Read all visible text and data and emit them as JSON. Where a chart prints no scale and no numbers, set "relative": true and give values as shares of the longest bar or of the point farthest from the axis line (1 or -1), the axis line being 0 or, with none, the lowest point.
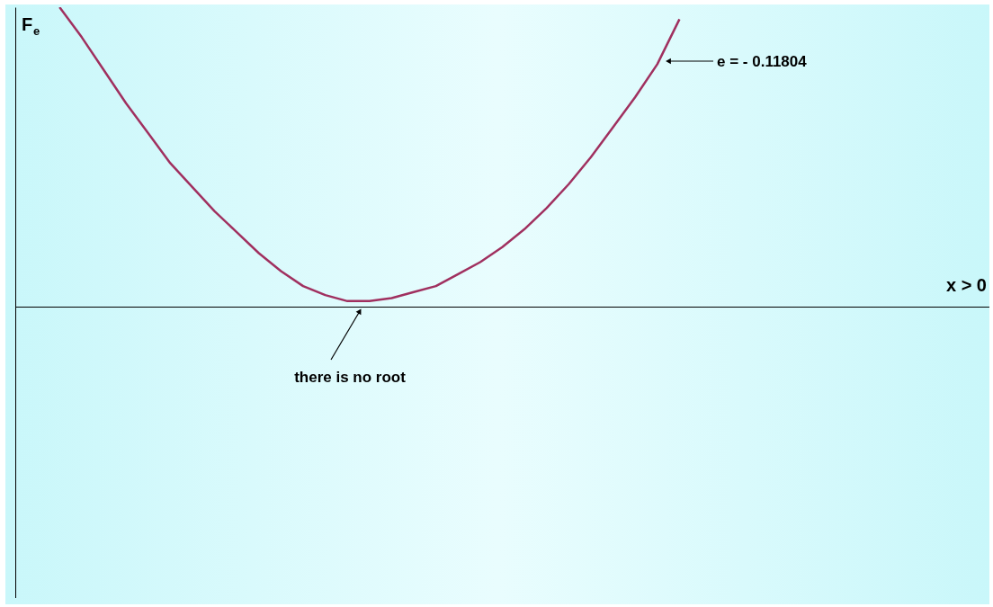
{
  "chart_data": {
    "type": "line",
    "relative": true,
    "xlabel": "x > 0",
    "ylabel": "F$_{e}$",
    "color": "#a0305f",
    "categories": [
      null,
      null,
      null,
      null,
      null,
      null,
      null,
      null,
      null,
      null,
      null,
      null,
      null,
      null,
      null,
      null,
      null,
      null,
      null,
      null,
      null,
      null,
      null,
      null,
      null,
      null,
      null,
      null,
      null,
      null,
      null,
      null,
      null,
      null,
      null,
      null,
      null,
      null,
      null,
      null,
      null,
      null,
      null,
      null,
      null
    ],
    "values": [
      null,
      null,
      1.0,
      0.9,
      0.79,
      0.68,
      0.58,
      0.48,
      0.4,
      0.32,
      0.25,
      0.18,
      0.12,
      0.07,
      0.04,
      0.02,
      0.02,
      0.03,
      0.05,
      0.07,
      0.11,
      0.15,
      0.2,
      0.26,
      0.33,
      0.41,
      0.5,
      0.6,
      0.7,
      0.81,
      0.96,
      null,
      null,
      null,
      null,
      null,
      null,
      null,
      null,
      null,
      null,
      null,
      null,
      null,
      null
    ],
    "annotations": [
      "e = - 0.11804",
      "there is no root"
    ]
  }
}
